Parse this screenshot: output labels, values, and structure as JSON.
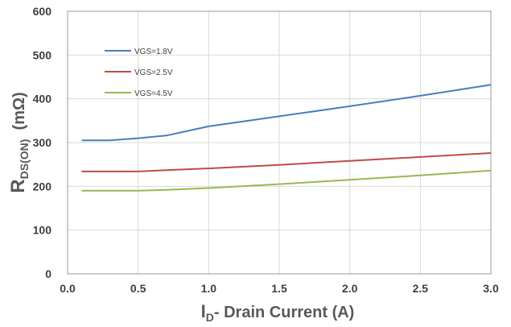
{
  "chart_data": {
    "type": "line",
    "xlabel": {
      "main": "I",
      "sub": "D",
      "rest": "- Drain Current (A)"
    },
    "ylabel": {
      "main": "R",
      "sub": "DS(ON)",
      "rest": "  (mΩ)"
    },
    "xlim": [
      0.0,
      3.0
    ],
    "ylim": [
      0,
      600
    ],
    "xticks": [
      "0.0",
      "0.5",
      "1.0",
      "1.5",
      "2.0",
      "2.5",
      "3.0"
    ],
    "yticks": [
      "0",
      "100",
      "200",
      "300",
      "400",
      "500",
      "600"
    ],
    "grid": true,
    "legend": "top-left",
    "series": [
      {
        "name": "VGS=1.8V",
        "color": "#4a7ebb",
        "x": [
          0.1,
          0.3,
          0.5,
          0.7,
          1.0,
          1.5,
          2.0,
          2.5,
          3.0
        ],
        "y": [
          305,
          305,
          310,
          316,
          337,
          360,
          383,
          407,
          432
        ]
      },
      {
        "name": "VGS=2.5V",
        "color": "#be4b48",
        "x": [
          0.1,
          0.3,
          0.5,
          0.7,
          1.0,
          1.5,
          2.0,
          2.5,
          3.0
        ],
        "y": [
          234,
          234,
          234,
          237,
          241,
          249,
          258,
          267,
          276
        ]
      },
      {
        "name": "VGS=4.5V",
        "color": "#98b954",
        "x": [
          0.1,
          0.3,
          0.5,
          0.7,
          1.0,
          1.5,
          2.0,
          2.5,
          3.0
        ],
        "y": [
          190,
          190,
          190,
          192,
          196,
          205,
          215,
          225,
          236
        ]
      }
    ]
  }
}
